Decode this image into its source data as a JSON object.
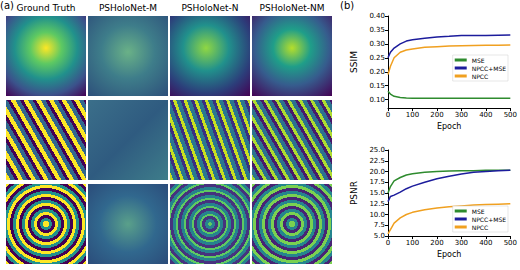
{
  "panel_a": {
    "label": "(a)",
    "columns": [
      "Ground Truth",
      "PSHoloNet-M",
      "PSHoloNet-N",
      "PSHoloNet-NM"
    ]
  },
  "panel_b": {
    "label": "(b)"
  },
  "chart_data": [
    {
      "type": "line",
      "x_label": "Epoch",
      "y_label": "SSIM",
      "x": [
        0,
        10,
        25,
        50,
        75,
        100,
        150,
        200,
        250,
        300,
        350,
        400,
        450,
        500
      ],
      "series": [
        {
          "name": "MSE",
          "color": "#2e8b2e",
          "values": [
            0.13,
            0.12,
            0.112,
            0.108,
            0.106,
            0.105,
            0.105,
            0.105,
            0.105,
            0.105,
            0.105,
            0.105,
            0.105,
            0.105
          ]
        },
        {
          "name": "NPCC+MSE",
          "color": "#1c1c9c",
          "values": [
            0.25,
            0.27,
            0.285,
            0.3,
            0.31,
            0.315,
            0.32,
            0.325,
            0.327,
            0.33,
            0.33,
            0.33,
            0.331,
            0.332
          ]
        },
        {
          "name": "NPCC",
          "color": "#f0a020",
          "values": [
            0.19,
            0.22,
            0.25,
            0.27,
            0.278,
            0.282,
            0.288,
            0.29,
            0.292,
            0.293,
            0.294,
            0.295,
            0.295,
            0.296
          ]
        }
      ],
      "xlim": [
        0,
        500
      ],
      "xticks": [
        0,
        100,
        200,
        300,
        400,
        500
      ],
      "ylim": [
        0.07,
        0.4
      ],
      "yticks": [
        {
          "value": 0.1,
          "label": "0.10"
        },
        {
          "value": 0.15,
          "label": "0.15"
        },
        {
          "value": 0.2,
          "label": "0.20"
        },
        {
          "value": 0.25,
          "label": "0.25"
        },
        {
          "value": 0.3,
          "label": "0.30"
        },
        {
          "value": 0.35,
          "label": "0.35"
        },
        {
          "value": 0.4,
          "label": "0.40"
        }
      ],
      "grid": false,
      "legend": "right"
    },
    {
      "type": "line",
      "x_label": "Epoch",
      "y_label": "PSNR",
      "x": [
        0,
        10,
        25,
        50,
        75,
        100,
        150,
        200,
        250,
        300,
        350,
        400,
        450,
        500
      ],
      "series": [
        {
          "name": "MSE",
          "color": "#2e8b2e",
          "values": [
            15.0,
            16.5,
            17.8,
            18.6,
            19.2,
            19.5,
            19.8,
            20.0,
            20.1,
            20.2,
            20.2,
            20.3,
            20.3,
            20.3
          ]
        },
        {
          "name": "NPCC+MSE",
          "color": "#1c1c9c",
          "values": [
            13.0,
            14.2,
            14.5,
            15.2,
            16.0,
            16.6,
            17.5,
            18.3,
            18.9,
            19.4,
            19.8,
            20.0,
            20.2,
            20.3
          ]
        },
        {
          "name": "NPCC",
          "color": "#f0a020",
          "values": [
            5.5,
            6.5,
            8.0,
            9.2,
            10.0,
            10.5,
            11.1,
            11.5,
            11.8,
            12.0,
            12.2,
            12.3,
            12.4,
            12.5
          ]
        }
      ],
      "xlim": [
        0,
        500
      ],
      "xticks": [
        0,
        100,
        200,
        300,
        400,
        500
      ],
      "ylim": [
        5,
        25
      ],
      "yticks": [
        {
          "value": 5,
          "label": "5.0"
        },
        {
          "value": 7.5,
          "label": "7.5"
        },
        {
          "value": 10,
          "label": "10.0"
        },
        {
          "value": 12.5,
          "label": "12.5"
        },
        {
          "value": 15,
          "label": "15.0"
        },
        {
          "value": 17.5,
          "label": "17.5"
        },
        {
          "value": 20,
          "label": "20.0"
        },
        {
          "value": 22.5,
          "label": "22.5"
        },
        {
          "value": 25,
          "label": "25.0"
        }
      ],
      "grid": false,
      "legend": "lower right"
    }
  ]
}
